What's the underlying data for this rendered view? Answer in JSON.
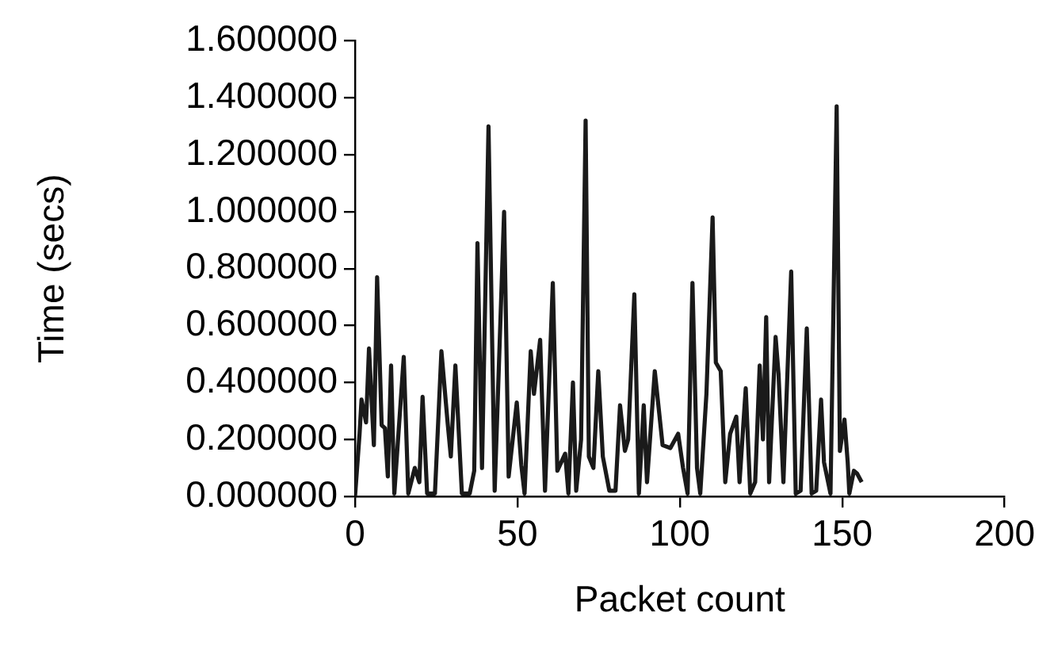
{
  "chart_data": {
    "type": "line",
    "xlabel": "Packet count",
    "ylabel": "Time (secs)",
    "series": [
      {
        "color": "#1a1a1a",
        "x": [
          0,
          1.4,
          2,
          3.4,
          4.3,
          5.8,
          6.8,
          8.2,
          9.2,
          10.1,
          11.1,
          12.1,
          15,
          16.4,
          18.4,
          19.8,
          20.8,
          22.2,
          24.6,
          26.6,
          28.5,
          29.5,
          30.9,
          32.9,
          35.3,
          36.7,
          37.7,
          39.1,
          41.1,
          43,
          45.9,
          47.3,
          49.8,
          51.2,
          52.2,
          54.1,
          55.1,
          57,
          58.5,
          60.9,
          62.3,
          64.7,
          65.7,
          67.1,
          68.1,
          69.6,
          71,
          72,
          73.4,
          74.9,
          76.3,
          78.3,
          80.2,
          81.6,
          83.1,
          84.1,
          86,
          87.4,
          88.9,
          89.9,
          92.3,
          94.7,
          97.1,
          99.5,
          101,
          102.4,
          103.9,
          105.3,
          106.3,
          108.2,
          110.1,
          111.1,
          112.6,
          114,
          115.5,
          117.4,
          118.4,
          120.3,
          121.7,
          123.2,
          124.6,
          125.6,
          126.6,
          127.5,
          129.5,
          130.4,
          131.9,
          134.3,
          135.7,
          137.2,
          139.1,
          140.6,
          142,
          143.5,
          144.4,
          146.4,
          148.3,
          149.3,
          150.7,
          151.7,
          152.2,
          153.6,
          154.6,
          156
        ],
        "values": [
          0,
          0.22,
          0.34,
          0.26,
          0.52,
          0.18,
          0.77,
          0.25,
          0.24,
          0.07,
          0.46,
          0.01,
          0.49,
          0.01,
          0.1,
          0.05,
          0.35,
          0.01,
          0.01,
          0.51,
          0.26,
          0.14,
          0.46,
          0.01,
          0.01,
          0.09,
          0.89,
          0.1,
          1.3,
          0.02,
          1,
          0.07,
          0.33,
          0.11,
          0.01,
          0.51,
          0.36,
          0.55,
          0.02,
          0.75,
          0.09,
          0.15,
          0.01,
          0.4,
          0.02,
          0.2,
          1.32,
          0.14,
          0.1,
          0.44,
          0.14,
          0.02,
          0.02,
          0.32,
          0.16,
          0.2,
          0.71,
          0.01,
          0.32,
          0.05,
          0.44,
          0.18,
          0.17,
          0.22,
          0.1,
          0.01,
          0.75,
          0.1,
          0.01,
          0.36,
          0.98,
          0.47,
          0.44,
          0.05,
          0.22,
          0.28,
          0.05,
          0.38,
          0.01,
          0.05,
          0.46,
          0.2,
          0.63,
          0.05,
          0.56,
          0.43,
          0.05,
          0.79,
          0.01,
          0.02,
          0.59,
          0.01,
          0.02,
          0.34,
          0.12,
          0.01,
          1.37,
          0.16,
          0.27,
          0.12,
          0.01,
          0.09,
          0.08,
          0.05
        ]
      }
    ],
    "xlim": [
      0,
      200
    ],
    "xticks": [
      0,
      50,
      100,
      150,
      200
    ],
    "ylim": [
      0,
      1.6
    ],
    "yticks": [
      {
        "value": 0,
        "label": "0.000000"
      },
      {
        "value": 0.2,
        "label": "0.200000"
      },
      {
        "value": 0.4,
        "label": "0.400000"
      },
      {
        "value": 0.6,
        "label": "0.600000"
      },
      {
        "value": 0.8,
        "label": "0.800000"
      },
      {
        "value": 1,
        "label": "1.000000"
      },
      {
        "value": 1.2,
        "label": "1.200000"
      },
      {
        "value": 1.4,
        "label": "1.400000"
      },
      {
        "value": 1.6,
        "label": "1.600000"
      }
    ],
    "grid": false,
    "legend": false,
    "marker": "none",
    "line_style": "solid"
  }
}
